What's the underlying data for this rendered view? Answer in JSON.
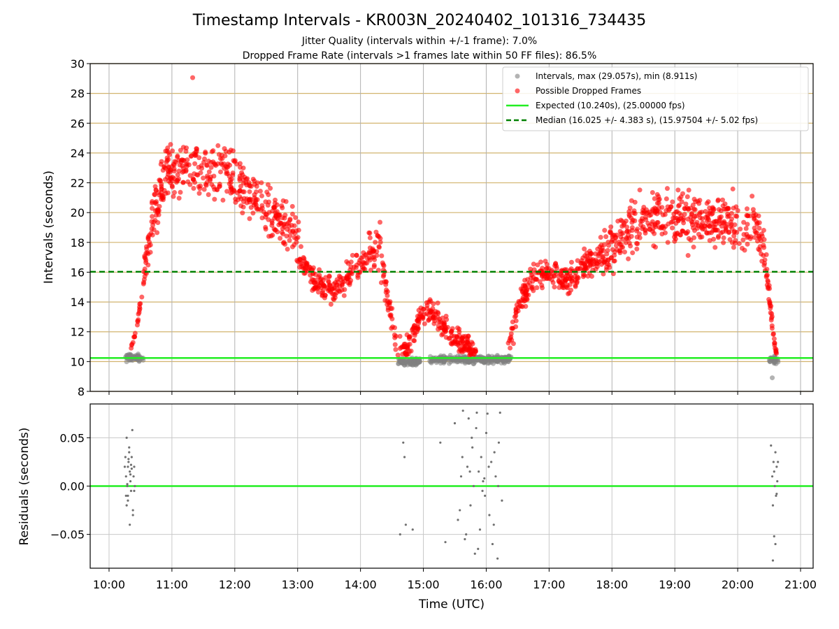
{
  "chart_data": [
    {
      "type": "scatter",
      "title": "Timestamp Intervals - KR003N_20240402_101316_734435",
      "subtitle_1": "Jitter Quality (intervals within +/-1 frame): 7.0%",
      "subtitle_2": "Dropped Frame Rate (intervals >1 frames late within 50 FF files): 86.5%",
      "xlabel": "",
      "ylabel": "Intervals (seconds)",
      "ylim": [
        8,
        30
      ],
      "xlim_hours": [
        9.7,
        21.2
      ],
      "yticks": [
        "8",
        "10",
        "12",
        "14",
        "16",
        "18",
        "20",
        "22",
        "24",
        "26",
        "28",
        "30"
      ],
      "grid": true,
      "legend_position": "top-right",
      "legend": [
        "Intervals, max (29.057s), min (8.911s)",
        "Possible Dropped Frames",
        "Expected (10.240s), (25.00000 fps)",
        "Median (16.025 +/- 4.383 s), (15.97504 +/- 5.02 fps)"
      ],
      "expected_line": 10.24,
      "median_line": 16.025,
      "colors": {
        "intervals": "#808080",
        "dropped": "#ff0000",
        "expected": "#22ee22",
        "median": "#008000",
        "hgrid": "#d2b46e"
      },
      "series": [
        {
          "name": "Possible Dropped Frames",
          "kind": "dropped_trend",
          "x_hours": [
            10.55,
            10.7,
            10.9,
            11.2,
            11.5,
            11.8,
            12.1,
            12.4,
            12.7,
            12.95,
            13.1,
            13.35,
            13.6,
            13.85,
            14.1,
            14.3,
            14.45,
            14.6,
            14.75,
            14.95,
            15.1,
            15.3,
            15.5,
            15.7,
            15.85
          ],
          "y_trend": [
            16,
            19.5,
            22.5,
            23,
            22.8,
            22.5,
            22,
            20.5,
            19.5,
            18.5,
            16.5,
            15,
            14.8,
            16,
            17,
            18,
            13.5,
            11,
            10.8,
            13,
            13.5,
            12.5,
            11.5,
            11,
            10.5
          ]
        },
        {
          "name": "Possible Dropped Frames",
          "kind": "dropped_trend",
          "x_hours": [
            16.35,
            16.5,
            16.7,
            17.0,
            17.3,
            17.6,
            17.9,
            18.2,
            18.5,
            18.8,
            19.1,
            19.4,
            19.7,
            20.0,
            20.2,
            20.35,
            20.45,
            20.55
          ],
          "y_trend": [
            11,
            13.5,
            15.5,
            16,
            15.5,
            16.5,
            17.2,
            18.8,
            19.5,
            19.8,
            19.5,
            19.5,
            19.5,
            19,
            19,
            18.5,
            16.5,
            13
          ]
        },
        {
          "name": "Intervals",
          "kind": "interval_clusters",
          "clusters": [
            {
              "x_range": [
                10.25,
                10.55
              ],
              "y_mean": 10.25
            },
            {
              "x_range": [
                14.6,
                14.95
              ],
              "y_mean": 10.0
            },
            {
              "x_range": [
                15.1,
                16.4
              ],
              "y_mean": 10.15
            },
            {
              "x_range": [
                20.5,
                20.65
              ],
              "y_mean": 10.1
            }
          ]
        },
        {
          "name": "Possible Dropped Frames",
          "kind": "steep_rise",
          "x_hours": [
            10.35,
            10.45,
            10.52,
            10.58
          ],
          "y": [
            10.8,
            12.5,
            14.5,
            16.0
          ]
        },
        {
          "name": "Possible Dropped Frames",
          "kind": "steep_fall",
          "x_hours": [
            20.45,
            20.52,
            20.58,
            20.62
          ],
          "y": [
            16.0,
            13.5,
            11.5,
            10.5
          ]
        }
      ]
    },
    {
      "type": "scatter",
      "title": "",
      "xlabel": "Time (UTC)",
      "ylabel": "Residuals (seconds)",
      "ylim": [
        -0.085,
        0.085
      ],
      "yticks": [
        "−0.05",
        "0.00",
        "0.05"
      ],
      "yticks_values": [
        -0.05,
        0.0,
        0.05
      ],
      "xticks": [
        "10:00",
        "11:00",
        "12:00",
        "13:00",
        "14:00",
        "15:00",
        "16:00",
        "17:00",
        "18:00",
        "19:00",
        "20:00",
        "21:00"
      ],
      "xticks_hours": [
        10,
        11,
        12,
        13,
        14,
        15,
        16,
        17,
        18,
        19,
        20,
        21
      ],
      "zero_line": 0.0,
      "grid": true,
      "series": [
        {
          "name": "Residuals",
          "x_hours": [
            10.25,
            10.26,
            10.27,
            10.28,
            10.28,
            10.29,
            10.3,
            10.3,
            10.31,
            10.32,
            10.33,
            10.33,
            10.34,
            10.35,
            10.36,
            10.37,
            10.38,
            10.39,
            10.4,
            10.41,
            10.3,
            10.32,
            10.35,
            10.38,
            10.27,
            10.36,
            10.29,
            10.34,
            10.4,
            10.31
          ],
          "y": [
            0.02,
            0.03,
            0.01,
            -0.02,
            0.05,
            0.0,
            0.02,
            -0.01,
            0.025,
            0.04,
            -0.04,
            0.015,
            0.005,
            -0.005,
            0.03,
            0.058,
            -0.03,
            0.01,
            0.02,
            0.0,
            -0.015,
            0.035,
            0.022,
            -0.025,
            -0.01,
            0.018,
            0.002,
            0.012,
            -0.005,
            0.028
          ]
        },
        {
          "name": "Residuals",
          "x_hours": [
            14.63,
            14.68,
            14.7,
            14.72,
            14.83,
            15.27,
            15.35
          ],
          "y": [
            -0.05,
            0.045,
            0.03,
            -0.04,
            -0.045,
            0.045,
            -0.058
          ]
        },
        {
          "name": "Residuals",
          "x_hours": [
            15.5,
            15.55,
            15.6,
            15.63,
            15.66,
            15.7,
            15.72,
            15.75,
            15.78,
            15.8,
            15.82,
            15.85,
            15.88,
            15.9,
            15.92,
            15.95,
            15.98,
            16.0,
            16.02,
            16.05,
            16.08,
            16.1,
            16.13,
            16.15,
            16.18,
            16.2,
            16.22,
            16.25,
            15.62,
            15.68,
            15.74,
            15.84,
            15.94,
            16.04,
            16.12,
            16.19,
            15.58,
            15.77,
            15.87,
            15.97
          ],
          "y": [
            0.065,
            -0.035,
            0.01,
            0.078,
            -0.055,
            0.02,
            0.07,
            -0.02,
            0.04,
            0.0,
            -0.07,
            0.076,
            0.015,
            -0.045,
            0.03,
            0.005,
            -0.01,
            0.055,
            0.075,
            -0.03,
            0.025,
            -0.06,
            0.035,
            0.01,
            -0.075,
            0.045,
            0.076,
            -0.015,
            0.03,
            -0.05,
            0.015,
            0.06,
            -0.005,
            0.02,
            -0.04,
            0.0,
            -0.025,
            0.05,
            -0.065,
            0.008
          ]
        },
        {
          "name": "Residuals",
          "x_hours": [
            20.53,
            20.55,
            20.56,
            20.57,
            20.58,
            20.59,
            20.6,
            20.61,
            20.62,
            20.63,
            20.64,
            20.56,
            20.6,
            20.62,
            20.58
          ],
          "y": [
            0.042,
            0.01,
            -0.02,
            0.025,
            -0.052,
            0.0,
            0.035,
            -0.01,
            0.02,
            0.005,
            0.025,
            -0.077,
            -0.06,
            -0.008,
            0.015
          ]
        }
      ]
    }
  ]
}
